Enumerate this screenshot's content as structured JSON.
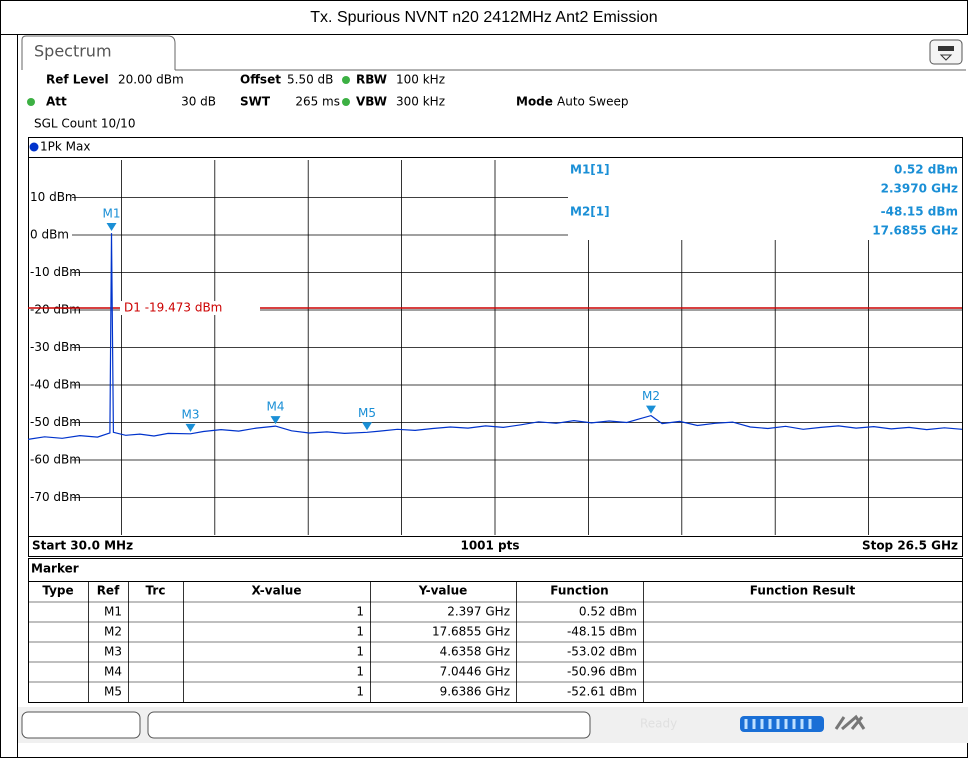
{
  "title": "Tx. Spurious NVNT n20 2412MHz Ant2 Emission",
  "tab": "Spectrum",
  "settings": {
    "ref_level_label": "Ref Level",
    "ref_level": "20.00 dBm",
    "offset_label": "Offset",
    "offset": "5.50 dB",
    "rbw_label": "RBW",
    "rbw": "100 kHz",
    "att_label": "Att",
    "att": "30 dB",
    "swt_label": "SWT",
    "swt": "265 ms",
    "vbw_label": "VBW",
    "vbw": "300 kHz",
    "mode_label": "Mode",
    "mode": "Auto Sweep",
    "count": "SGL Count 10/10"
  },
  "chart_data": {
    "type": "line",
    "trace_name": "1Pk Max",
    "color": "#0033cc",
    "xlim": [
      0.03,
      26.5
    ],
    "ylim": [
      -80,
      20
    ],
    "yticks": [
      {
        "value": 10,
        "label": "10 dBm"
      },
      {
        "value": 0,
        "label": "0 dBm"
      },
      {
        "value": -10,
        "label": "-10 dBm"
      },
      {
        "value": -20,
        "label": "-20 dBm"
      },
      {
        "value": -30,
        "label": "-30 dBm"
      },
      {
        "value": -40,
        "label": "-40 dBm"
      },
      {
        "value": -50,
        "label": "-50 dBm"
      },
      {
        "value": -60,
        "label": "-60 dBm"
      },
      {
        "value": -70,
        "label": "-70 dBm"
      }
    ],
    "grid": true,
    "x": [
      0.03,
      0.5,
      1.0,
      1.5,
      2.0,
      2.35,
      2.397,
      2.45,
      2.8,
      3.2,
      3.6,
      4.0,
      4.6358,
      5.0,
      5.5,
      6.0,
      6.5,
      7.0446,
      7.5,
      8.0,
      8.5,
      9.0,
      9.6386,
      10,
      10.5,
      11,
      11.5,
      12,
      12.5,
      13,
      13.5,
      14,
      14.5,
      15,
      15.5,
      16,
      16.5,
      17,
      17.6855,
      18,
      18.5,
      19,
      19.5,
      20,
      20.5,
      21,
      21.5,
      22,
      22.5,
      23,
      23.5,
      24,
      24.5,
      25,
      25.5,
      26,
      26.5
    ],
    "values": [
      -54.5,
      -53.8,
      -54.2,
      -53.5,
      -53.9,
      -52.8,
      0.52,
      -52.6,
      -53.4,
      -53.1,
      -53.6,
      -52.9,
      -53.02,
      -52.4,
      -51.9,
      -52.3,
      -51.5,
      -50.96,
      -52.2,
      -52.8,
      -52.5,
      -52.9,
      -52.61,
      -52.3,
      -51.8,
      -52.1,
      -51.6,
      -51.2,
      -51.5,
      -50.9,
      -51.3,
      -50.6,
      -49.8,
      -50.2,
      -49.5,
      -50.1,
      -49.6,
      -50.0,
      -48.15,
      -50.3,
      -49.7,
      -50.8,
      -50.2,
      -49.9,
      -51.2,
      -51.6,
      -51.0,
      -51.8,
      -51.3,
      -50.9,
      -51.5,
      -51.1,
      -51.7,
      -51.3,
      -51.9,
      -51.4,
      -51.8
    ],
    "display_line": {
      "label": "D1 -19.473 dBm",
      "value": -19.473,
      "color": "#cc0000"
    },
    "markers": [
      {
        "name": "M1",
        "x": 2.397,
        "y": 0.52
      },
      {
        "name": "M2",
        "x": 17.6855,
        "y": -48.15
      },
      {
        "name": "M3",
        "x": 4.6358,
        "y": -53.02
      },
      {
        "name": "M4",
        "x": 7.0446,
        "y": -50.96
      },
      {
        "name": "M5",
        "x": 9.6386,
        "y": -52.61
      }
    ],
    "marker_color": "#1a8fd6"
  },
  "readouts": [
    {
      "name": "M1[1]",
      "level": "0.52 dBm",
      "freq": "2.3970 GHz"
    },
    {
      "name": "M2[1]",
      "level": "-48.15 dBm",
      "freq": "17.6855 GHz"
    }
  ],
  "sweep": {
    "start": "Start 30.0 MHz",
    "points": "1001 pts",
    "stop": "Stop 26.5 GHz"
  },
  "marker_table": {
    "title": "Marker",
    "columns": [
      "Type",
      "Ref",
      "Trc",
      "X-value",
      "Y-value",
      "Function",
      "Function Result"
    ],
    "rows": [
      {
        "type": "M1",
        "trc": "1",
        "x": "2.397 GHz",
        "y": "0.52 dBm"
      },
      {
        "type": "M2",
        "trc": "1",
        "x": "17.6855 GHz",
        "y": "-48.15 dBm"
      },
      {
        "type": "M3",
        "trc": "1",
        "x": "4.6358 GHz",
        "y": "-53.02 dBm"
      },
      {
        "type": "M4",
        "trc": "1",
        "x": "7.0446 GHz",
        "y": "-50.96 dBm"
      },
      {
        "type": "M5",
        "trc": "1",
        "x": "9.6386 GHz",
        "y": "-52.61 dBm"
      }
    ]
  },
  "status": "Ready"
}
